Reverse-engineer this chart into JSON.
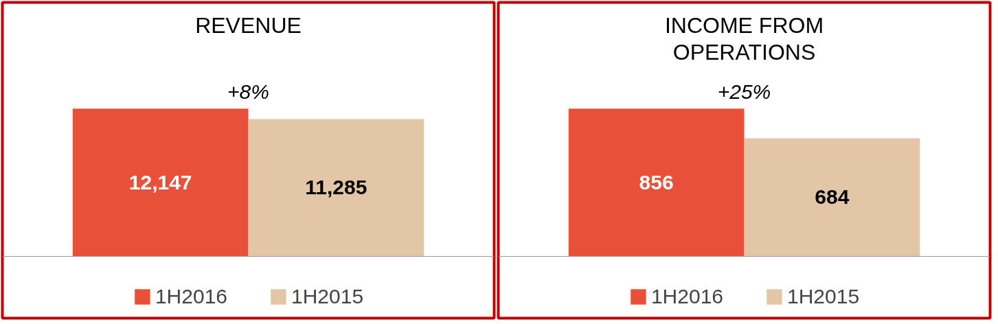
{
  "chart_data": [
    {
      "type": "bar",
      "title": "REVENUE",
      "annotations": [
        "+8%"
      ],
      "categories": [
        null
      ],
      "series": [
        {
          "name": "1H2016",
          "color": "#e8503a",
          "values": [
            12147
          ],
          "value_labels": [
            "12,147"
          ]
        },
        {
          "name": "1H2015",
          "color": "#e2c6a6",
          "values": [
            11285
          ],
          "value_labels": [
            "11,285"
          ]
        }
      ],
      "legend": "bottom"
    },
    {
      "type": "bar",
      "title": "INCOME FROM\nOPERATIONS",
      "annotations": [
        "+25%"
      ],
      "categories": [
        null
      ],
      "series": [
        {
          "name": "1H2016",
          "color": "#e8503a",
          "values": [
            856
          ],
          "value_labels": [
            "856"
          ]
        },
        {
          "name": "1H2015",
          "color": "#e2c6a6",
          "values": [
            684
          ],
          "value_labels": [
            "684"
          ]
        }
      ],
      "legend": "bottom"
    }
  ]
}
